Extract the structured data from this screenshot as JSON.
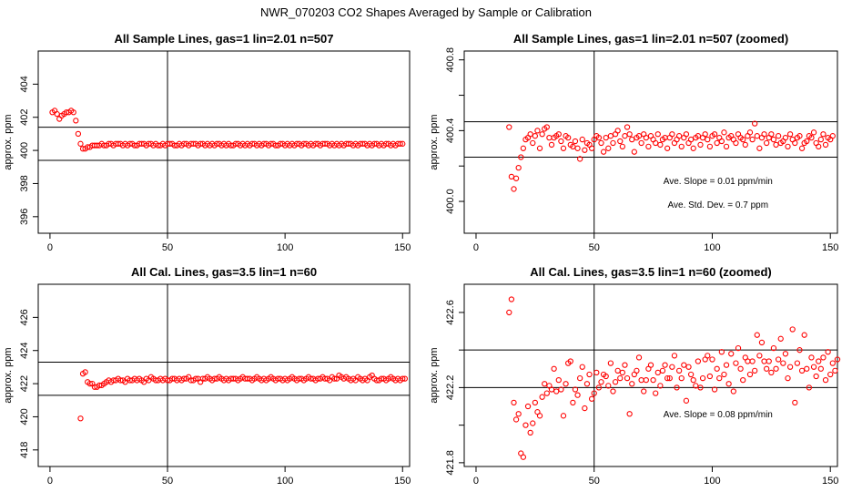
{
  "figure_title": "NWR_070203  CO2 Shapes Averaged by Sample or Calibration",
  "colors": {
    "points": "#ff0000",
    "lines": "#000000",
    "background": "#ffffff"
  },
  "chart_data": [
    {
      "type": "scatter",
      "title": "All Sample Lines, gas=1 lin=2.01 n=507",
      "xlabel": "",
      "ylabel": "approx. ppm",
      "xlim": [
        -5,
        153
      ],
      "ylim": [
        395,
        406
      ],
      "xticks": [
        0,
        50,
        100,
        150
      ],
      "yticks": [
        396,
        398,
        400,
        402,
        404
      ],
      "vline": 50,
      "hlines": [
        399.4,
        401.4
      ],
      "annotations": [],
      "x_start": 1,
      "x_step": 1,
      "y": [
        402.3,
        402.4,
        402.2,
        401.9,
        402.1,
        402.2,
        402.3,
        402.3,
        402.4,
        402.3,
        401.8,
        401.0,
        400.4,
        400.1,
        400.1,
        400.2,
        400.2,
        400.3,
        400.3,
        400.3,
        400.3,
        400.4,
        400.3,
        400.3,
        400.4,
        400.4,
        400.3,
        400.4,
        400.4,
        400.4,
        400.3,
        400.4,
        400.3,
        400.4,
        400.4,
        400.3,
        400.3,
        400.4,
        400.4,
        400.4,
        400.3,
        400.4,
        400.4,
        400.3,
        400.4,
        400.3,
        400.3,
        400.4,
        400.3,
        400.4,
        400.4,
        400.4,
        400.3,
        400.3,
        400.4,
        400.3,
        400.4,
        400.4,
        400.3,
        400.4,
        400.4,
        400.4,
        400.3,
        400.4,
        400.4,
        400.3,
        400.4,
        400.3,
        400.4,
        400.3,
        400.4,
        400.4,
        400.3,
        400.4,
        400.3,
        400.4,
        400.3,
        400.3,
        400.4,
        400.4,
        400.3,
        400.4,
        400.3,
        400.4,
        400.3,
        400.4,
        400.4,
        400.3,
        400.4,
        400.3,
        400.4,
        400.4,
        400.3,
        400.4,
        400.4,
        400.3,
        400.3,
        400.4,
        400.4,
        400.3,
        400.4,
        400.3,
        400.4,
        400.3,
        400.4,
        400.4,
        400.3,
        400.4,
        400.4,
        400.3,
        400.4,
        400.3,
        400.4,
        400.4,
        400.3,
        400.4,
        400.4,
        400.4,
        400.3,
        400.4,
        400.3,
        400.4,
        400.3,
        400.4,
        400.3,
        400.4,
        400.4,
        400.4,
        400.3,
        400.4,
        400.3,
        400.4,
        400.4,
        400.4,
        400.3,
        400.4,
        400.3,
        400.4,
        400.4,
        400.3,
        400.4,
        400.3,
        400.4,
        400.4,
        400.3,
        400.4,
        400.3,
        400.4,
        400.4,
        400.4
      ]
    },
    {
      "type": "scatter",
      "title": "All Sample Lines, gas=1 lin=2.01 n=507 (zoomed)",
      "xlabel": "",
      "ylabel": "approx. ppm",
      "xlim": [
        -5,
        153
      ],
      "ylim": [
        399.82,
        400.85
      ],
      "xticks": [
        0,
        50,
        100,
        150
      ],
      "yticks": [
        400.0,
        400.4,
        400.8
      ],
      "minor_yticks": [
        400.2,
        400.6
      ],
      "vline": 50,
      "hlines": [
        400.25,
        400.45
      ],
      "annotations": [
        "Ave. Slope =  0.01  ppm/min",
        "Ave. Std. Dev. =  0.7  ppm"
      ],
      "x_start": 14,
      "x_step": 1,
      "y": [
        400.42,
        400.14,
        400.07,
        400.13,
        400.19,
        400.25,
        400.3,
        400.35,
        400.36,
        400.38,
        400.33,
        400.37,
        400.4,
        400.3,
        400.38,
        400.41,
        400.42,
        400.36,
        400.32,
        400.36,
        400.37,
        400.38,
        400.34,
        400.3,
        400.37,
        400.36,
        400.32,
        400.31,
        400.34,
        400.3,
        400.24,
        400.35,
        400.29,
        400.33,
        400.32,
        400.3,
        400.35,
        400.37,
        400.36,
        400.33,
        400.28,
        400.36,
        400.3,
        400.37,
        400.33,
        400.38,
        400.4,
        400.34,
        400.31,
        400.37,
        400.42,
        400.38,
        400.35,
        400.28,
        400.36,
        400.37,
        400.33,
        400.38,
        400.36,
        400.31,
        400.37,
        400.35,
        400.33,
        400.38,
        400.32,
        400.35,
        400.36,
        400.3,
        400.36,
        400.38,
        400.33,
        400.35,
        400.37,
        400.31,
        400.36,
        400.38,
        400.33,
        400.35,
        400.3,
        400.36,
        400.37,
        400.32,
        400.36,
        400.38,
        400.35,
        400.31,
        400.37,
        400.38,
        400.33,
        400.36,
        400.34,
        400.39,
        400.31,
        400.36,
        400.37,
        400.35,
        400.33,
        400.38,
        400.36,
        400.35,
        400.32,
        400.37,
        400.39,
        400.35,
        400.44,
        400.37,
        400.3,
        400.36,
        400.38,
        400.33,
        400.36,
        400.38,
        400.35,
        400.32,
        400.37,
        400.33,
        400.34,
        400.36,
        400.31,
        400.38,
        400.35,
        400.33,
        400.36,
        400.37,
        400.3,
        400.33,
        400.34,
        400.37,
        400.36,
        400.39,
        400.33,
        400.31,
        400.35,
        400.38,
        400.32,
        400.36,
        400.35,
        400.37
      ]
    },
    {
      "type": "scatter",
      "title": "All Cal. Lines, gas=3.5 lin=1 n=60",
      "xlabel": "",
      "ylabel": "approx. ppm",
      "xlim": [
        -5,
        153
      ],
      "ylim": [
        417,
        428
      ],
      "xticks": [
        0,
        50,
        100,
        150
      ],
      "yticks": [
        418,
        420,
        422,
        424,
        426
      ],
      "vline": 50,
      "hlines": [
        421.3,
        423.3
      ],
      "annotations": [],
      "x_start": 13,
      "x_step": 1,
      "y": [
        419.9,
        422.6,
        422.7,
        422.1,
        422.0,
        422.0,
        421.8,
        421.8,
        421.9,
        421.9,
        422.0,
        422.1,
        422.2,
        422.1,
        422.2,
        422.2,
        422.3,
        422.2,
        422.2,
        422.1,
        422.3,
        422.2,
        422.2,
        422.3,
        422.2,
        422.3,
        422.2,
        422.1,
        422.3,
        422.2,
        422.4,
        422.3,
        422.2,
        422.2,
        422.3,
        422.2,
        422.3,
        422.2,
        422.2,
        422.3,
        422.3,
        422.2,
        422.3,
        422.2,
        422.3,
        422.3,
        422.4,
        422.2,
        422.2,
        422.3,
        422.3,
        422.1,
        422.3,
        422.3,
        422.4,
        422.3,
        422.2,
        422.3,
        422.3,
        422.4,
        422.3,
        422.2,
        422.3,
        422.2,
        422.3,
        422.3,
        422.3,
        422.2,
        422.3,
        422.4,
        422.3,
        422.3,
        422.3,
        422.2,
        422.3,
        422.4,
        422.3,
        422.2,
        422.3,
        422.2,
        422.3,
        422.4,
        422.3,
        422.2,
        422.3,
        422.3,
        422.2,
        422.3,
        422.2,
        422.3,
        422.4,
        422.3,
        422.2,
        422.3,
        422.3,
        422.2,
        422.3,
        422.4,
        422.3,
        422.3,
        422.2,
        422.3,
        422.3,
        422.4,
        422.3,
        422.3,
        422.2,
        422.4,
        422.3,
        422.3,
        422.5,
        422.4,
        422.3,
        422.4,
        422.3,
        422.2,
        422.3,
        422.2,
        422.4,
        422.3,
        422.2,
        422.3,
        422.2,
        422.4,
        422.5,
        422.3,
        422.2,
        422.2,
        422.3,
        422.3,
        422.2,
        422.3,
        422.4,
        422.3,
        422.2,
        422.3,
        422.2,
        422.3,
        422.3
      ]
    },
    {
      "type": "scatter",
      "title": "All Cal. Lines, gas=3.5 lin=1 n=60 (zoomed)",
      "xlabel": "",
      "ylabel": "approx. ppm",
      "xlim": [
        -5,
        153
      ],
      "ylim": [
        421.78,
        422.75
      ],
      "xticks": [
        0,
        50,
        100,
        150
      ],
      "yticks": [
        421.8,
        422.2,
        422.6
      ],
      "minor_yticks": [
        422.0,
        422.4
      ],
      "vline": 50,
      "hlines": [
        422.2,
        422.4
      ],
      "annotations": [
        "Ave. Slope =  0.08  ppm/min"
      ],
      "x_start": 14,
      "x_step": 1,
      "y": [
        422.6,
        422.67,
        422.12,
        422.03,
        422.06,
        421.85,
        421.83,
        422.0,
        422.1,
        421.96,
        422.01,
        422.12,
        422.07,
        422.05,
        422.15,
        422.22,
        422.17,
        422.21,
        422.19,
        422.3,
        422.18,
        422.24,
        422.19,
        422.05,
        422.22,
        422.33,
        422.34,
        422.12,
        422.19,
        422.16,
        422.25,
        422.31,
        422.09,
        422.22,
        422.27,
        422.14,
        422.17,
        422.28,
        422.2,
        422.23,
        422.27,
        422.26,
        422.21,
        422.33,
        422.18,
        422.23,
        422.29,
        422.25,
        422.28,
        422.32,
        422.25,
        422.06,
        422.22,
        422.27,
        422.29,
        422.36,
        422.24,
        422.18,
        422.24,
        422.3,
        422.32,
        422.24,
        422.17,
        422.28,
        422.21,
        422.29,
        422.32,
        422.25,
        422.25,
        422.31,
        422.37,
        422.2,
        422.29,
        422.25,
        422.32,
        422.13,
        422.31,
        422.27,
        422.24,
        422.21,
        422.34,
        422.2,
        422.25,
        422.35,
        422.37,
        422.26,
        422.35,
        422.19,
        422.3,
        422.25,
        422.39,
        422.27,
        422.32,
        422.22,
        422.38,
        422.18,
        422.33,
        422.41,
        422.3,
        422.24,
        422.36,
        422.34,
        422.27,
        422.34,
        422.29,
        422.48,
        422.37,
        422.44,
        422.34,
        422.3,
        422.34,
        422.28,
        422.41,
        422.3,
        422.35,
        422.46,
        422.33,
        422.38,
        422.25,
        422.31,
        422.51,
        422.12,
        422.33,
        422.4,
        422.29,
        422.48,
        422.3,
        422.2,
        422.36,
        422.31,
        422.26,
        422.34,
        422.3,
        422.36,
        422.24,
        422.39,
        422.27,
        422.33,
        422.29,
        422.35,
        422.31
      ]
    }
  ]
}
